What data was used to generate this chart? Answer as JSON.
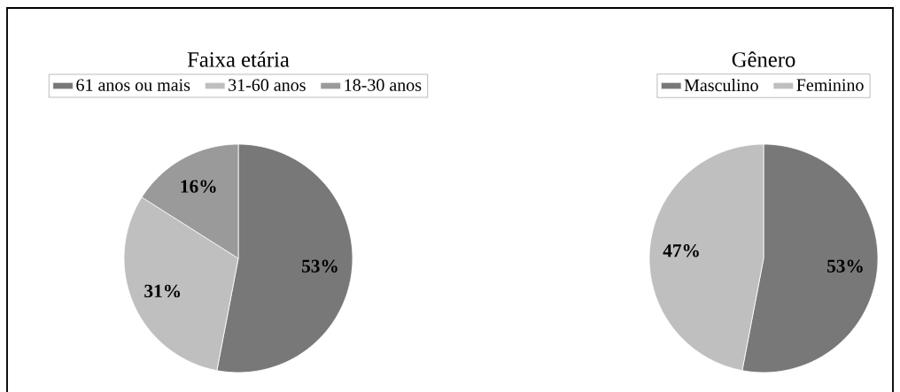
{
  "chart_data": [
    {
      "type": "pie",
      "title": "Faixa etária",
      "categories": [
        "61 anos ou mais",
        "31-60 anos",
        "18-30 anos"
      ],
      "values": [
        53,
        31,
        16
      ],
      "colors": [
        "#787878",
        "#bfbfbf",
        "#9a9a9a"
      ],
      "value_labels": [
        "53%",
        "31%",
        "16%"
      ],
      "legend": "top"
    },
    {
      "type": "pie",
      "title": "Gênero",
      "categories": [
        "Masculino",
        "Feminino"
      ],
      "values": [
        53,
        47
      ],
      "colors": [
        "#787878",
        "#bfbfbf"
      ],
      "value_labels": [
        "53%",
        "47%"
      ],
      "legend": "top"
    }
  ]
}
